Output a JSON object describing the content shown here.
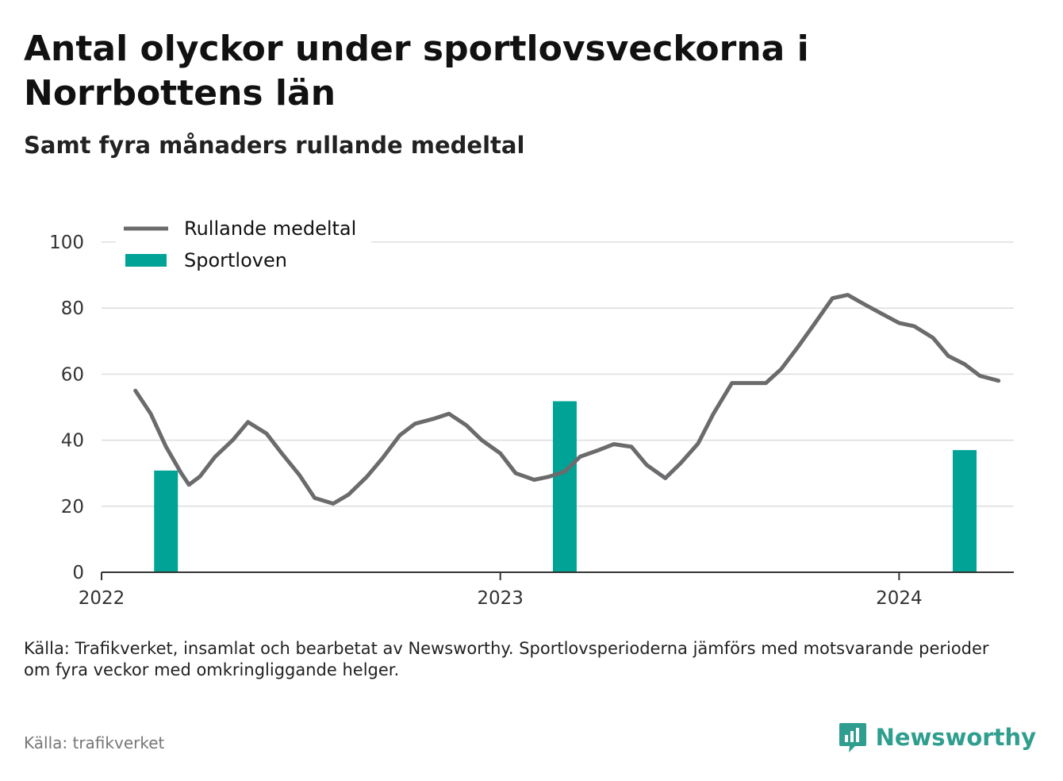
{
  "header": {
    "title": "Antal olyckor under sportlovsveckorna i Norrbottens län",
    "subtitle": "Samt fyra månaders rullande medeltal"
  },
  "footer": {
    "note": "Källa: Trafikverket, insamlat och bearbetat av Newsworthy. Sportlovsperioderna jämförs med motsvarande perioder om fyra veckor med omkringliggande helger.",
    "source": "Källa: trafikverket",
    "brand": "Newsworthy"
  },
  "colors": {
    "line": "#6b6b6d",
    "bars": "#00a396",
    "grid": "#dddddd",
    "axis": "#333333",
    "brand": "#2f9e8e"
  },
  "chart_data": {
    "type": "line+bar",
    "x_axis": {
      "type": "date",
      "range": [
        "2022-01-01",
        "2024-04-15"
      ],
      "ticks": [
        "2022",
        "2023",
        "2024"
      ]
    },
    "y_axis": {
      "range": [
        0,
        100
      ],
      "ticks": [
        0,
        20,
        40,
        60,
        80,
        100
      ]
    },
    "grid": true,
    "legend": {
      "position": "top-left",
      "items": [
        {
          "label": "Rullande medeltal",
          "kind": "line"
        },
        {
          "label": "Sportloven",
          "kind": "bar"
        }
      ]
    },
    "series": [
      {
        "name": "Rullande medeltal",
        "type": "line",
        "points": [
          [
            "2022-02-01",
            55
          ],
          [
            "2022-02-15",
            48
          ],
          [
            "2022-03-01",
            38
          ],
          [
            "2022-03-15",
            30
          ],
          [
            "2022-03-22",
            26.5
          ],
          [
            "2022-04-01",
            29
          ],
          [
            "2022-04-15",
            35
          ],
          [
            "2022-05-01",
            40
          ],
          [
            "2022-05-15",
            45.5
          ],
          [
            "2022-06-01",
            42
          ],
          [
            "2022-06-15",
            36
          ],
          [
            "2022-07-01",
            29.5
          ],
          [
            "2022-07-15",
            22.5
          ],
          [
            "2022-08-01",
            20.8
          ],
          [
            "2022-08-15",
            23.5
          ],
          [
            "2022-09-01",
            29
          ],
          [
            "2022-09-15",
            34.5
          ],
          [
            "2022-10-01",
            41.5
          ],
          [
            "2022-10-15",
            45
          ],
          [
            "2022-11-01",
            46.5
          ],
          [
            "2022-11-15",
            48
          ],
          [
            "2022-12-01",
            44.5
          ],
          [
            "2022-12-15",
            40
          ],
          [
            "2023-01-01",
            36
          ],
          [
            "2023-01-15",
            30
          ],
          [
            "2023-02-01",
            28
          ],
          [
            "2023-02-15",
            29
          ],
          [
            "2023-03-01",
            30.5
          ],
          [
            "2023-03-15",
            35
          ],
          [
            "2023-04-01",
            37
          ],
          [
            "2023-04-15",
            38.8
          ],
          [
            "2023-05-01",
            38
          ],
          [
            "2023-05-15",
            32.5
          ],
          [
            "2023-06-01",
            28.5
          ],
          [
            "2023-06-15",
            33
          ],
          [
            "2023-07-01",
            39
          ],
          [
            "2023-07-15",
            48
          ],
          [
            "2023-08-01",
            57.3
          ],
          [
            "2023-08-15",
            57.3
          ],
          [
            "2023-09-01",
            57.3
          ],
          [
            "2023-09-15",
            61.5
          ],
          [
            "2023-10-01",
            68.5
          ],
          [
            "2023-10-15",
            75
          ],
          [
            "2023-11-01",
            83
          ],
          [
            "2023-11-15",
            84
          ],
          [
            "2023-12-01",
            81
          ],
          [
            "2023-12-15",
            78.5
          ],
          [
            "2024-01-01",
            75.5
          ],
          [
            "2024-01-15",
            74.5
          ],
          [
            "2024-02-01",
            71
          ],
          [
            "2024-02-15",
            65.5
          ],
          [
            "2024-03-01",
            63
          ],
          [
            "2024-03-15",
            59.5
          ],
          [
            "2024-04-01",
            58
          ]
        ]
      },
      {
        "name": "Sportloven",
        "type": "bar",
        "points": [
          [
            "2022-03-01",
            30.8
          ],
          [
            "2023-03-01",
            51.8
          ],
          [
            "2024-03-01",
            37
          ]
        ]
      }
    ]
  }
}
